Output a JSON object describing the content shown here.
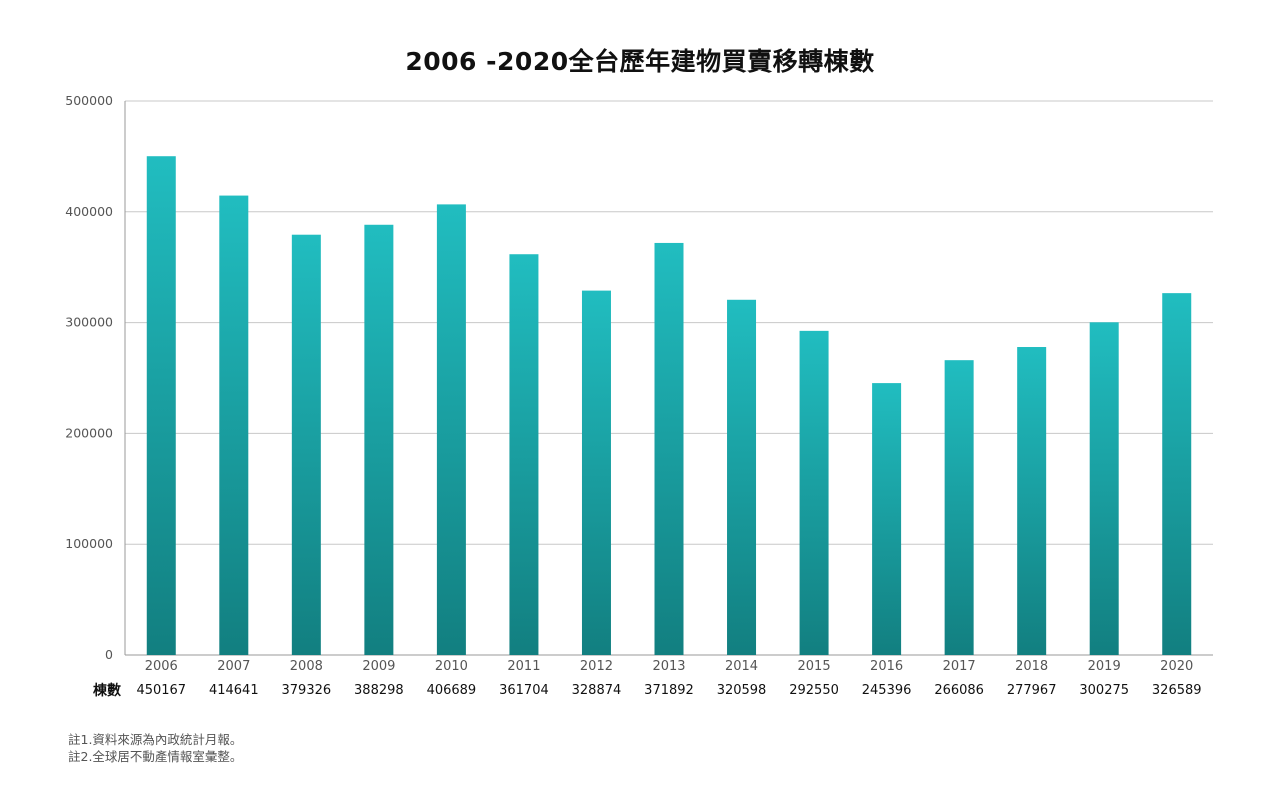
{
  "chart_data": {
    "type": "bar",
    "title": "2006 -2020全台歷年建物買賣移轉棟數",
    "categories": [
      "2006",
      "2007",
      "2008",
      "2009",
      "2010",
      "2011",
      "2012",
      "2013",
      "2014",
      "2015",
      "2016",
      "2017",
      "2018",
      "2019",
      "2020"
    ],
    "series": [
      {
        "name": "棟數",
        "values": [
          450167,
          414641,
          379326,
          388298,
          406689,
          361704,
          328874,
          371892,
          320598,
          292550,
          245396,
          266086,
          277967,
          300275,
          326589
        ]
      }
    ],
    "value_labels": [
      "450167",
      "414641",
      "379326",
      "388298",
      "406689",
      "361704",
      "328874",
      "371892",
      "320598",
      "292550",
      "245396",
      "266086",
      "277967",
      "300275",
      "326589"
    ],
    "yticks": [
      "0",
      "100000",
      "200000",
      "300000",
      "400000",
      "500000"
    ],
    "ylim": [
      0,
      500000
    ],
    "grid": true,
    "colors": {
      "bar_top": "#21BDC0",
      "bar_bottom": "#127F80",
      "grid": "#c8c8c8",
      "axis": "#999999"
    }
  },
  "notes": [
    "註1.資料來源為內政統計月報。",
    "註2.全球居不動產情報室彙整。"
  ]
}
